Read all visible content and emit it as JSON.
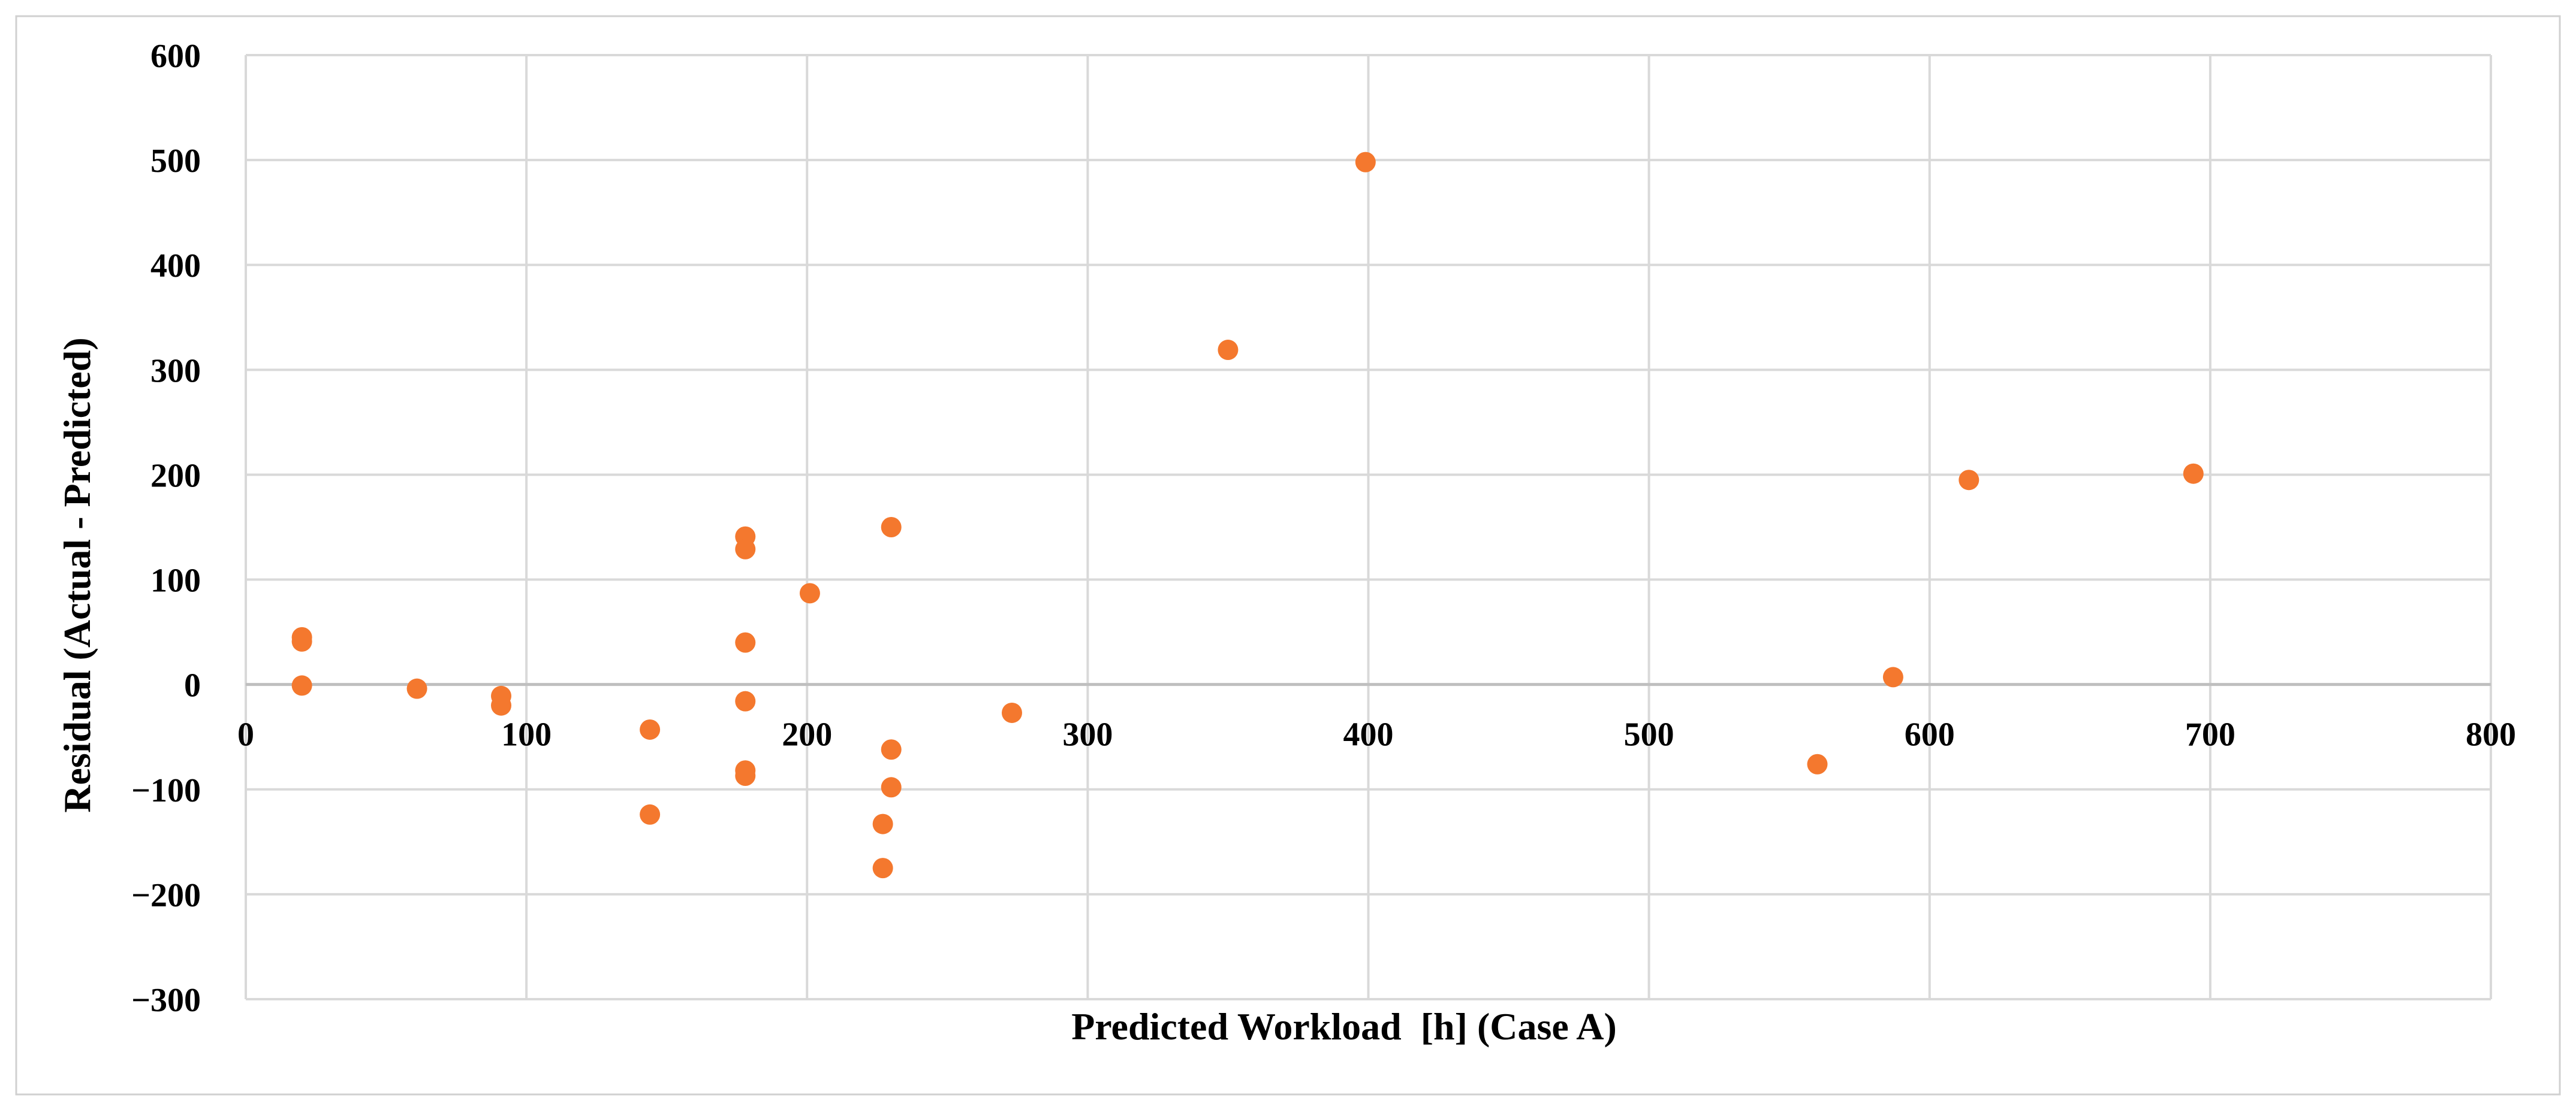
{
  "chart_data": {
    "type": "scatter",
    "title": "",
    "xlabel": "Predicted Workload  [h] (Case A)",
    "ylabel": "Residual (Actual - Predicted)",
    "xlim": [
      0,
      800
    ],
    "ylim": [
      -300,
      600
    ],
    "x_ticks": [
      0,
      100,
      200,
      300,
      400,
      500,
      600,
      700,
      800
    ],
    "y_ticks": [
      -300,
      -200,
      -100,
      0,
      100,
      200,
      300,
      400,
      500,
      600
    ],
    "x_tick_labels": [
      "0",
      "100",
      "200",
      "300",
      "400",
      "500",
      "600",
      "700",
      "800"
    ],
    "y_tick_labels": [
      "−300",
      "−200",
      "−100",
      "0",
      "100",
      "200",
      "300",
      "400",
      "500",
      "600"
    ],
    "grid": true,
    "legend": "none",
    "marker_color": "#F4782E",
    "gridline_color": "#D9D9D9",
    "series": [
      {
        "points": [
          {
            "x": 20,
            "y": 45
          },
          {
            "x": 20,
            "y": 41
          },
          {
            "x": 20,
            "y": -1
          },
          {
            "x": 61,
            "y": -4
          },
          {
            "x": 91,
            "y": -11
          },
          {
            "x": 91,
            "y": -20
          },
          {
            "x": 144,
            "y": -43
          },
          {
            "x": 144,
            "y": -124
          },
          {
            "x": 178,
            "y": 141
          },
          {
            "x": 178,
            "y": 129
          },
          {
            "x": 178,
            "y": 40
          },
          {
            "x": 178,
            "y": -16
          },
          {
            "x": 178,
            "y": -82
          },
          {
            "x": 178,
            "y": -87
          },
          {
            "x": 201,
            "y": 87
          },
          {
            "x": 227,
            "y": -133
          },
          {
            "x": 227,
            "y": -175
          },
          {
            "x": 230,
            "y": 150
          },
          {
            "x": 230,
            "y": -62
          },
          {
            "x": 230,
            "y": -98
          },
          {
            "x": 273,
            "y": -27
          },
          {
            "x": 350,
            "y": 319
          },
          {
            "x": 399,
            "y": 498
          },
          {
            "x": 560,
            "y": -76
          },
          {
            "x": 587,
            "y": 7
          },
          {
            "x": 614,
            "y": 195
          },
          {
            "x": 694,
            "y": 201
          }
        ]
      }
    ]
  }
}
